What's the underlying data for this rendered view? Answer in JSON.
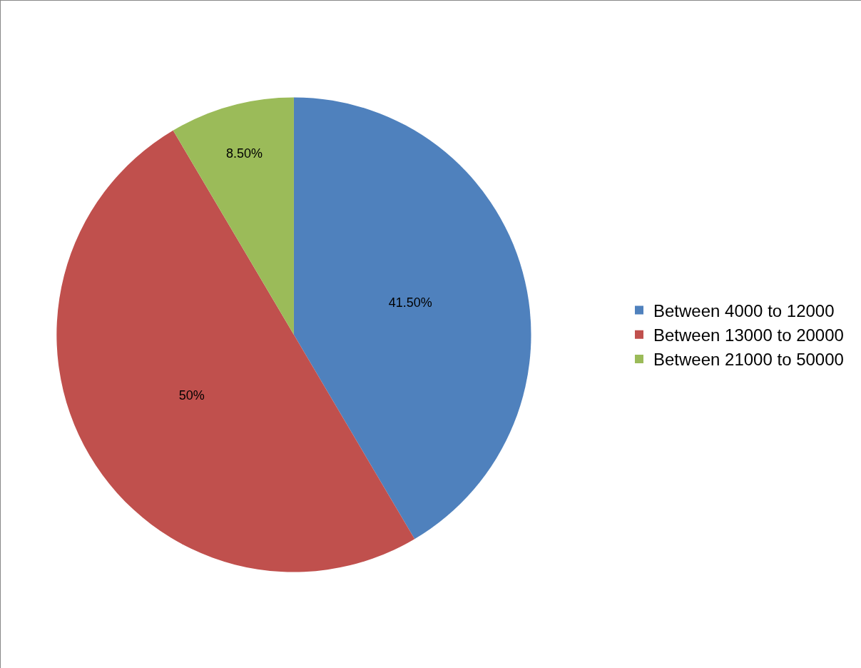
{
  "chart_data": {
    "type": "pie",
    "categories": [
      "Between 4000 to 12000",
      "Between 13000 to 20000",
      "Between 21000 to 50000"
    ],
    "values": [
      41.5,
      50,
      8.5
    ],
    "colors": [
      "#4f81bd",
      "#c0504d",
      "#9bbb59"
    ],
    "value_labels": [
      "41.50%",
      "50%",
      "8.50%"
    ],
    "legend": "right"
  }
}
